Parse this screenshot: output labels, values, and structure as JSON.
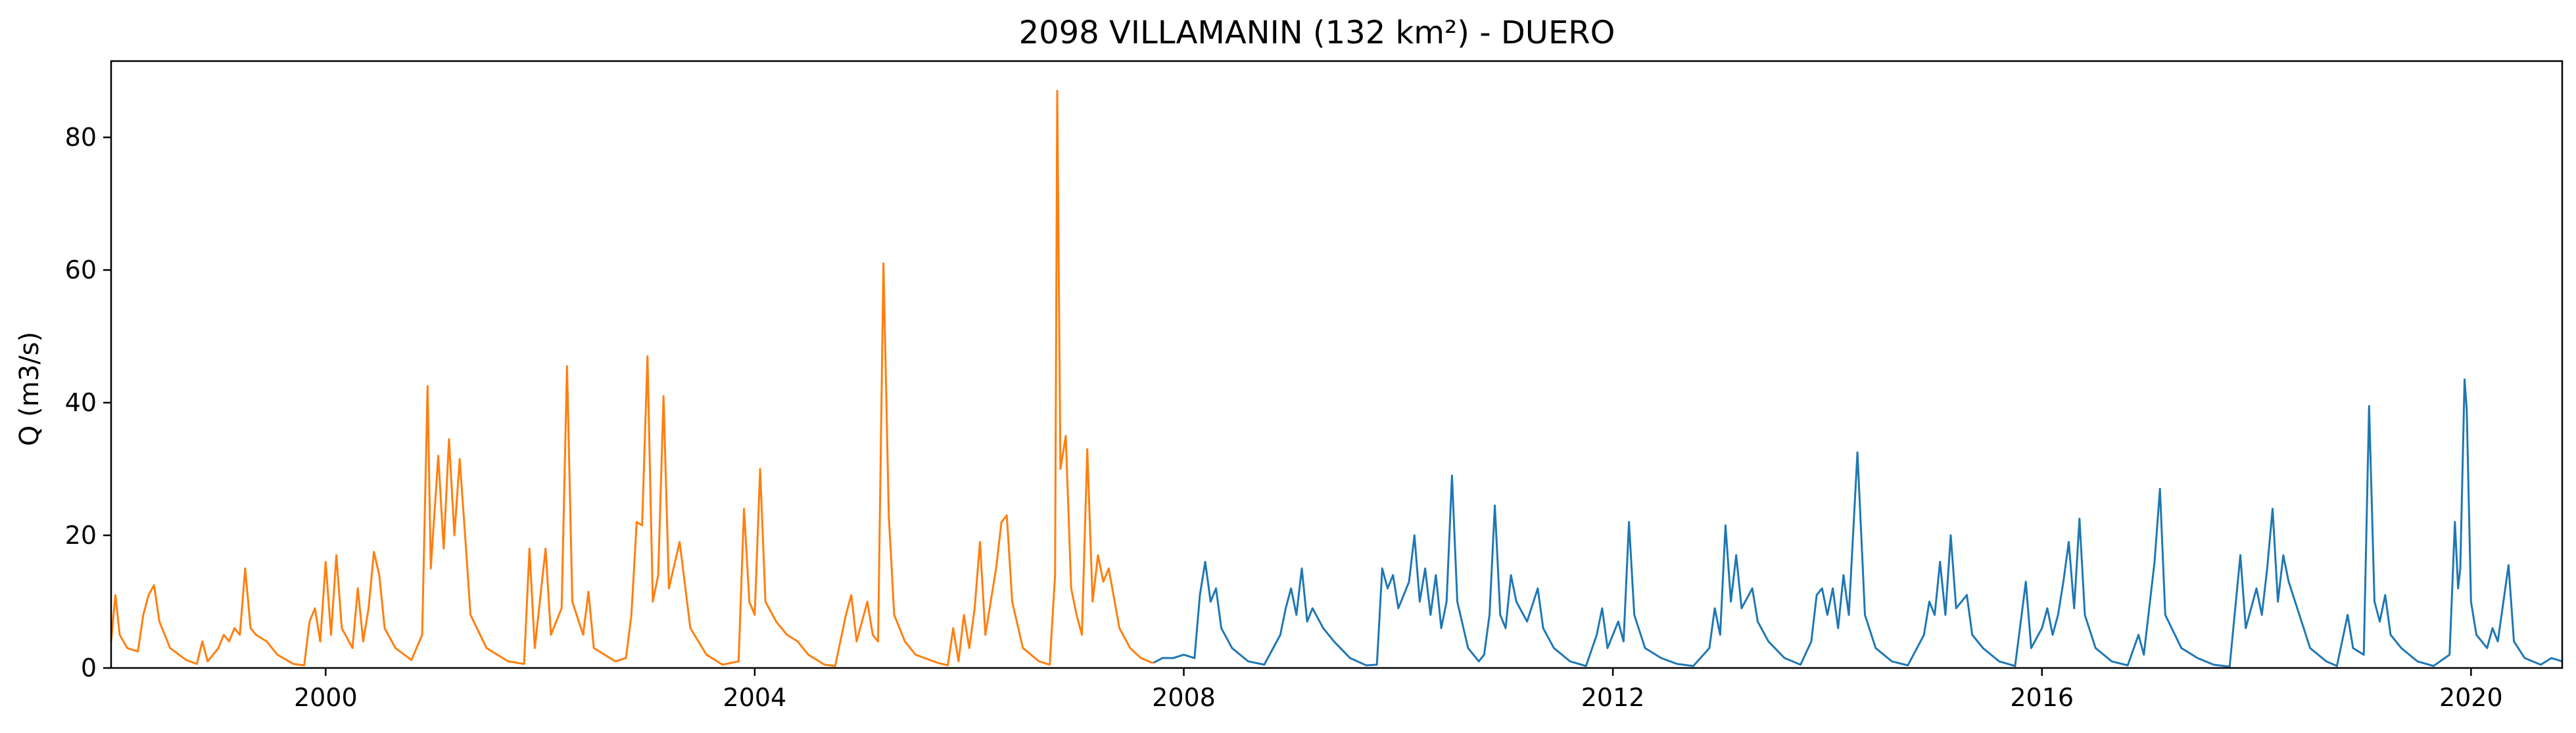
{
  "chart_data": {
    "type": "line",
    "title": "2098 VILLAMANIN (132 km²) - DUERO",
    "xlabel": "",
    "ylabel": "Q (m3/s)",
    "xlim": [
      1998.0,
      2020.85
    ],
    "ylim": [
      0,
      91.5
    ],
    "x_ticks": [
      2000,
      2004,
      2008,
      2012,
      2016,
      2020
    ],
    "x_tick_labels": [
      "2000",
      "2004",
      "2008",
      "2012",
      "2016",
      "2020"
    ],
    "y_ticks": [
      0,
      20,
      40,
      60,
      80
    ],
    "y_tick_labels": [
      "0",
      "20",
      "40",
      "60",
      "80"
    ],
    "grid": false,
    "legend": "none",
    "series": [
      {
        "color": "#ff7f0e",
        "points": [
          [
            1998.0,
            4.0
          ],
          [
            1998.04,
            11.0
          ],
          [
            1998.08,
            5.0
          ],
          [
            1998.15,
            3.0
          ],
          [
            1998.25,
            2.5
          ],
          [
            1998.3,
            8.0
          ],
          [
            1998.35,
            11.0
          ],
          [
            1998.4,
            12.5
          ],
          [
            1998.45,
            7.0
          ],
          [
            1998.55,
            3.0
          ],
          [
            1998.7,
            1.2
          ],
          [
            1998.8,
            0.6
          ],
          [
            1998.85,
            4.0
          ],
          [
            1998.9,
            1.0
          ],
          [
            1999.0,
            3.0
          ],
          [
            1999.05,
            5.0
          ],
          [
            1999.1,
            4.0
          ],
          [
            1999.15,
            6.0
          ],
          [
            1999.2,
            5.0
          ],
          [
            1999.25,
            15.0
          ],
          [
            1999.3,
            6.0
          ],
          [
            1999.35,
            5.0
          ],
          [
            1999.45,
            4.0
          ],
          [
            1999.55,
            2.0
          ],
          [
            1999.7,
            0.6
          ],
          [
            1999.8,
            0.4
          ],
          [
            1999.85,
            7.0
          ],
          [
            1999.9,
            9.0
          ],
          [
            1999.95,
            4.0
          ],
          [
            2000.0,
            16.0
          ],
          [
            2000.05,
            5.0
          ],
          [
            2000.1,
            17.0
          ],
          [
            2000.15,
            6.0
          ],
          [
            2000.25,
            3.0
          ],
          [
            2000.3,
            12.0
          ],
          [
            2000.35,
            4.0
          ],
          [
            2000.4,
            9.0
          ],
          [
            2000.45,
            17.5
          ],
          [
            2000.5,
            14.0
          ],
          [
            2000.55,
            6.0
          ],
          [
            2000.65,
            3.0
          ],
          [
            2000.8,
            1.2
          ],
          [
            2000.9,
            5.0
          ],
          [
            2000.95,
            42.5
          ],
          [
            2000.98,
            15.0
          ],
          [
            2001.05,
            32.0
          ],
          [
            2001.1,
            18.0
          ],
          [
            2001.15,
            34.5
          ],
          [
            2001.2,
            20.0
          ],
          [
            2001.25,
            31.5
          ],
          [
            2001.3,
            20.0
          ],
          [
            2001.35,
            8.0
          ],
          [
            2001.5,
            3.0
          ],
          [
            2001.7,
            1.0
          ],
          [
            2001.85,
            0.6
          ],
          [
            2001.9,
            18.0
          ],
          [
            2001.95,
            3.0
          ],
          [
            2002.05,
            18.0
          ],
          [
            2002.1,
            5.0
          ],
          [
            2002.2,
            9.0
          ],
          [
            2002.25,
            45.5
          ],
          [
            2002.3,
            10.0
          ],
          [
            2002.4,
            5.0
          ],
          [
            2002.45,
            11.5
          ],
          [
            2002.5,
            3.0
          ],
          [
            2002.7,
            1.0
          ],
          [
            2002.8,
            1.5
          ],
          [
            2002.85,
            8.0
          ],
          [
            2002.9,
            22.0
          ],
          [
            2002.95,
            21.5
          ],
          [
            2003.0,
            47.0
          ],
          [
            2003.05,
            10.0
          ],
          [
            2003.1,
            14.0
          ],
          [
            2003.15,
            41.0
          ],
          [
            2003.2,
            12.0
          ],
          [
            2003.3,
            19.0
          ],
          [
            2003.4,
            6.0
          ],
          [
            2003.55,
            2.0
          ],
          [
            2003.7,
            0.5
          ],
          [
            2003.85,
            1.0
          ],
          [
            2003.9,
            24.0
          ],
          [
            2003.95,
            10.0
          ],
          [
            2004.0,
            8.0
          ],
          [
            2004.05,
            30.0
          ],
          [
            2004.1,
            10.0
          ],
          [
            2004.2,
            7.0
          ],
          [
            2004.3,
            5.0
          ],
          [
            2004.4,
            4.0
          ],
          [
            2004.5,
            2.0
          ],
          [
            2004.65,
            0.5
          ],
          [
            2004.75,
            0.3
          ],
          [
            2004.85,
            8.0
          ],
          [
            2004.9,
            11.0
          ],
          [
            2004.95,
            4.0
          ],
          [
            2005.05,
            10.0
          ],
          [
            2005.1,
            5.0
          ],
          [
            2005.15,
            4.0
          ],
          [
            2005.2,
            61.0
          ],
          [
            2005.25,
            23.0
          ],
          [
            2005.3,
            8.0
          ],
          [
            2005.4,
            4.0
          ],
          [
            2005.5,
            2.0
          ],
          [
            2005.7,
            0.8
          ],
          [
            2005.8,
            0.4
          ],
          [
            2005.85,
            6.0
          ],
          [
            2005.9,
            1.0
          ],
          [
            2005.95,
            8.0
          ],
          [
            2006.0,
            3.0
          ],
          [
            2006.05,
            9.0
          ],
          [
            2006.1,
            19.0
          ],
          [
            2006.15,
            5.0
          ],
          [
            2006.25,
            15.0
          ],
          [
            2006.3,
            22.0
          ],
          [
            2006.35,
            23.0
          ],
          [
            2006.4,
            10.0
          ],
          [
            2006.5,
            3.0
          ],
          [
            2006.65,
            1.0
          ],
          [
            2006.75,
            0.5
          ],
          [
            2006.8,
            14.0
          ],
          [
            2006.82,
            87.0
          ],
          [
            2006.85,
            30.0
          ],
          [
            2006.9,
            35.0
          ],
          [
            2006.95,
            12.0
          ],
          [
            2007.0,
            8.0
          ],
          [
            2007.05,
            5.0
          ],
          [
            2007.1,
            33.0
          ],
          [
            2007.15,
            10.0
          ],
          [
            2007.2,
            17.0
          ],
          [
            2007.25,
            13.0
          ],
          [
            2007.3,
            15.0
          ],
          [
            2007.4,
            6.0
          ],
          [
            2007.5,
            3.0
          ],
          [
            2007.6,
            1.5
          ],
          [
            2007.7,
            0.8
          ],
          [
            2007.72,
            0.8
          ]
        ]
      },
      {
        "color": "#1f77b4",
        "points": [
          [
            2007.72,
            0.8
          ],
          [
            2007.8,
            1.5
          ],
          [
            2007.9,
            1.5
          ],
          [
            2008.0,
            2.0
          ],
          [
            2008.1,
            1.5
          ],
          [
            2008.15,
            11.0
          ],
          [
            2008.2,
            16.0
          ],
          [
            2008.25,
            10.0
          ],
          [
            2008.3,
            12.0
          ],
          [
            2008.35,
            6.0
          ],
          [
            2008.45,
            3.0
          ],
          [
            2008.6,
            1.0
          ],
          [
            2008.75,
            0.5
          ],
          [
            2008.9,
            5.0
          ],
          [
            2008.95,
            9.0
          ],
          [
            2009.0,
            12.0
          ],
          [
            2009.05,
            8.0
          ],
          [
            2009.1,
            15.0
          ],
          [
            2009.15,
            7.0
          ],
          [
            2009.2,
            9.0
          ],
          [
            2009.3,
            6.0
          ],
          [
            2009.4,
            4.0
          ],
          [
            2009.55,
            1.5
          ],
          [
            2009.7,
            0.4
          ],
          [
            2009.8,
            0.5
          ],
          [
            2009.85,
            15.0
          ],
          [
            2009.9,
            12.0
          ],
          [
            2009.95,
            14.0
          ],
          [
            2010.0,
            9.0
          ],
          [
            2010.05,
            11.0
          ],
          [
            2010.1,
            13.0
          ],
          [
            2010.15,
            20.0
          ],
          [
            2010.2,
            10.0
          ],
          [
            2010.25,
            15.0
          ],
          [
            2010.3,
            8.0
          ],
          [
            2010.35,
            14.0
          ],
          [
            2010.4,
            6.0
          ],
          [
            2010.45,
            10.0
          ],
          [
            2010.5,
            29.0
          ],
          [
            2010.55,
            10.0
          ],
          [
            2010.65,
            3.0
          ],
          [
            2010.75,
            1.0
          ],
          [
            2010.8,
            2.0
          ],
          [
            2010.85,
            8.0
          ],
          [
            2010.9,
            24.5
          ],
          [
            2010.95,
            8.0
          ],
          [
            2011.0,
            6.0
          ],
          [
            2011.05,
            14.0
          ],
          [
            2011.1,
            10.0
          ],
          [
            2011.2,
            7.0
          ],
          [
            2011.3,
            12.0
          ],
          [
            2011.35,
            6.0
          ],
          [
            2011.45,
            3.0
          ],
          [
            2011.6,
            1.0
          ],
          [
            2011.75,
            0.3
          ],
          [
            2011.85,
            5.0
          ],
          [
            2011.9,
            9.0
          ],
          [
            2011.95,
            3.0
          ],
          [
            2012.05,
            7.0
          ],
          [
            2012.1,
            4.0
          ],
          [
            2012.15,
            22.0
          ],
          [
            2012.2,
            8.0
          ],
          [
            2012.3,
            3.0
          ],
          [
            2012.45,
            1.5
          ],
          [
            2012.6,
            0.6
          ],
          [
            2012.75,
            0.3
          ],
          [
            2012.9,
            3.0
          ],
          [
            2012.95,
            9.0
          ],
          [
            2013.0,
            5.0
          ],
          [
            2013.05,
            21.5
          ],
          [
            2013.1,
            10.0
          ],
          [
            2013.15,
            17.0
          ],
          [
            2013.2,
            9.0
          ],
          [
            2013.3,
            12.0
          ],
          [
            2013.35,
            7.0
          ],
          [
            2013.45,
            4.0
          ],
          [
            2013.6,
            1.5
          ],
          [
            2013.75,
            0.5
          ],
          [
            2013.85,
            4.0
          ],
          [
            2013.9,
            11.0
          ],
          [
            2013.95,
            12.0
          ],
          [
            2014.0,
            8.0
          ],
          [
            2014.05,
            12.0
          ],
          [
            2014.1,
            6.0
          ],
          [
            2014.15,
            14.0
          ],
          [
            2014.2,
            8.0
          ],
          [
            2014.28,
            32.5
          ],
          [
            2014.35,
            8.0
          ],
          [
            2014.45,
            3.0
          ],
          [
            2014.6,
            1.0
          ],
          [
            2014.75,
            0.4
          ],
          [
            2014.9,
            5.0
          ],
          [
            2014.95,
            10.0
          ],
          [
            2015.0,
            8.0
          ],
          [
            2015.05,
            16.0
          ],
          [
            2015.1,
            8.0
          ],
          [
            2015.15,
            20.0
          ],
          [
            2015.2,
            9.0
          ],
          [
            2015.3,
            11.0
          ],
          [
            2015.35,
            5.0
          ],
          [
            2015.45,
            3.0
          ],
          [
            2015.6,
            1.0
          ],
          [
            2015.75,
            0.3
          ],
          [
            2015.85,
            13.0
          ],
          [
            2015.9,
            3.0
          ],
          [
            2016.0,
            6.0
          ],
          [
            2016.05,
            9.0
          ],
          [
            2016.1,
            5.0
          ],
          [
            2016.15,
            8.0
          ],
          [
            2016.2,
            13.0
          ],
          [
            2016.25,
            19.0
          ],
          [
            2016.3,
            9.0
          ],
          [
            2016.35,
            22.5
          ],
          [
            2016.4,
            8.0
          ],
          [
            2016.5,
            3.0
          ],
          [
            2016.65,
            1.0
          ],
          [
            2016.8,
            0.4
          ],
          [
            2016.9,
            5.0
          ],
          [
            2016.95,
            2.0
          ],
          [
            2017.05,
            16.0
          ],
          [
            2017.1,
            27.0
          ],
          [
            2017.15,
            8.0
          ],
          [
            2017.3,
            3.0
          ],
          [
            2017.45,
            1.5
          ],
          [
            2017.6,
            0.5
          ],
          [
            2017.75,
            0.2
          ],
          [
            2017.85,
            17.0
          ],
          [
            2017.9,
            6.0
          ],
          [
            2018.0,
            12.0
          ],
          [
            2018.05,
            8.0
          ],
          [
            2018.1,
            15.0
          ],
          [
            2018.15,
            24.0
          ],
          [
            2018.2,
            10.0
          ],
          [
            2018.25,
            17.0
          ],
          [
            2018.3,
            13.0
          ],
          [
            2018.4,
            8.0
          ],
          [
            2018.5,
            3.0
          ],
          [
            2018.65,
            1.0
          ],
          [
            2018.75,
            0.3
          ],
          [
            2018.85,
            8.0
          ],
          [
            2018.9,
            3.0
          ],
          [
            2019.0,
            2.0
          ],
          [
            2019.05,
            39.5
          ],
          [
            2019.1,
            10.0
          ],
          [
            2019.15,
            7.0
          ],
          [
            2019.2,
            11.0
          ],
          [
            2019.25,
            5.0
          ],
          [
            2019.35,
            3.0
          ],
          [
            2019.5,
            1.0
          ],
          [
            2019.65,
            0.3
          ],
          [
            2019.8,
            2.0
          ],
          [
            2019.85,
            22.0
          ],
          [
            2019.88,
            12.0
          ],
          [
            2019.9,
            15.0
          ],
          [
            2019.94,
            43.5
          ],
          [
            2019.96,
            39.0
          ],
          [
            2020.0,
            10.0
          ],
          [
            2020.05,
            5.0
          ],
          [
            2020.15,
            3.0
          ],
          [
            2020.2,
            6.0
          ],
          [
            2020.25,
            4.0
          ],
          [
            2020.35,
            15.5
          ],
          [
            2020.4,
            4.0
          ],
          [
            2020.5,
            1.5
          ],
          [
            2020.65,
            0.5
          ],
          [
            2020.75,
            1.5
          ],
          [
            2020.85,
            1.0
          ]
        ]
      }
    ]
  }
}
